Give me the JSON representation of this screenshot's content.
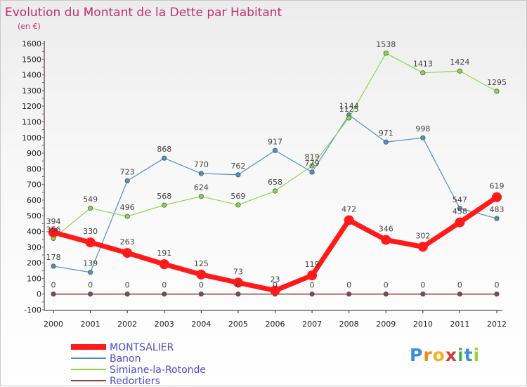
{
  "chart_data": {
    "type": "line",
    "title": "Evolution du Montant de la Dette par Habitant",
    "subtitle": "(en €)",
    "x": [
      "2000",
      "2001",
      "2002",
      "2003",
      "2004",
      "2005",
      "2006",
      "2007",
      "2008",
      "2009",
      "2010",
      "2011",
      "2012"
    ],
    "ylim": [
      -100,
      1600
    ],
    "yticks": [
      "-100",
      "0",
      "100",
      "200",
      "300",
      "400",
      "500",
      "600",
      "700",
      "800",
      "900",
      "1000",
      "1100",
      "1200",
      "1300",
      "1400",
      "1500",
      "1600"
    ],
    "grid": false,
    "legend_position": "bottom-left",
    "series": [
      {
        "name": "MONTSALIER",
        "color": "#ff1a1a",
        "values": [
          394,
          330,
          263,
          191,
          125,
          73,
          23,
          119,
          472,
          346,
          302,
          458,
          619
        ]
      },
      {
        "name": "Banon",
        "color": "#4d90cc",
        "values": [
          178,
          139,
          723,
          868,
          770,
          762,
          917,
          779,
          1144,
          971,
          998,
          547,
          483
        ]
      },
      {
        "name": "Simiane-la-Rotonde",
        "color": "#8ad84a",
        "values": [
          356,
          549,
          496,
          568,
          624,
          569,
          658,
          819,
          1125,
          1538,
          1413,
          1424,
          1295
        ]
      },
      {
        "name": "Redortiers",
        "color": "#8a4545",
        "values": [
          0,
          0,
          0,
          0,
          0,
          0,
          0,
          0,
          0,
          0,
          0,
          0,
          0
        ]
      }
    ]
  },
  "logo_text": "Proxiti"
}
